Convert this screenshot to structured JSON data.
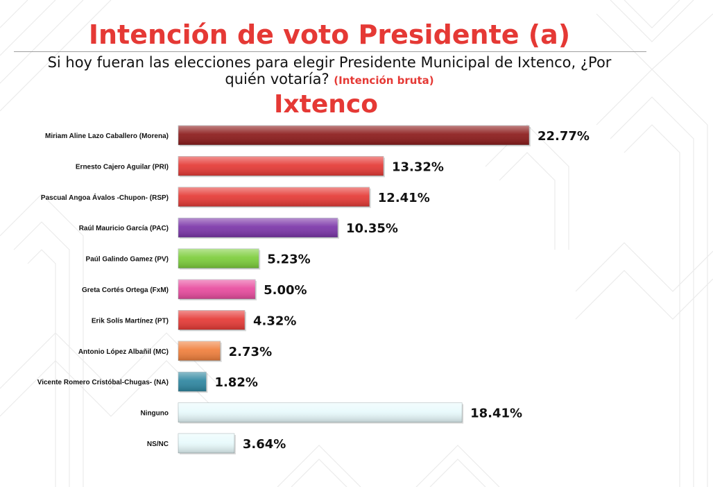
{
  "title": "Intención de voto Presidente (a)",
  "question": "Si hoy fueran las elecciones para elegir Presidente Municipal de Ixtenco, ¿Por quién votaría?",
  "question_note": "(Intención bruta)",
  "subtitle": "Ixtenco",
  "chart_data": {
    "type": "bar",
    "orientation": "horizontal",
    "categories": [
      "Miriam Aline Lazo Caballero (Morena)",
      "Ernesto Cajero Aguilar (PRI)",
      "Pascual Angoa Ávalos -Chupon- (RSP)",
      "Raúl Mauricio García (PAC)",
      "Paúl Galindo Gamez (PV)",
      "Greta Cortés Ortega (FxM)",
      "Erik Solís Martínez (PT)",
      "Antonio López Albañil (MC)",
      "Vicente Romero Cristóbal-Chugas- (NA)",
      "Ninguno",
      "NS/NC"
    ],
    "values": [
      22.77,
      13.32,
      12.41,
      10.35,
      5.23,
      5.0,
      4.32,
      2.73,
      1.82,
      18.41,
      3.64
    ],
    "value_labels": [
      "22.77%",
      "13.32%",
      "12.41%",
      "10.35%",
      "5.23%",
      "5.00%",
      "4.32%",
      "2.73%",
      "1.82%",
      "18.41%",
      "3.64%"
    ],
    "colors": [
      "#8b1a1a",
      "#e53935",
      "#e53935",
      "#7b35a8",
      "#7ccd3a",
      "#e84b9e",
      "#e53935",
      "#f07f3c",
      "#2e86a0",
      "#e8fafc",
      "#e8fafc"
    ],
    "xlim": [
      0,
      22.77
    ],
    "grid": false,
    "legend": "none"
  }
}
